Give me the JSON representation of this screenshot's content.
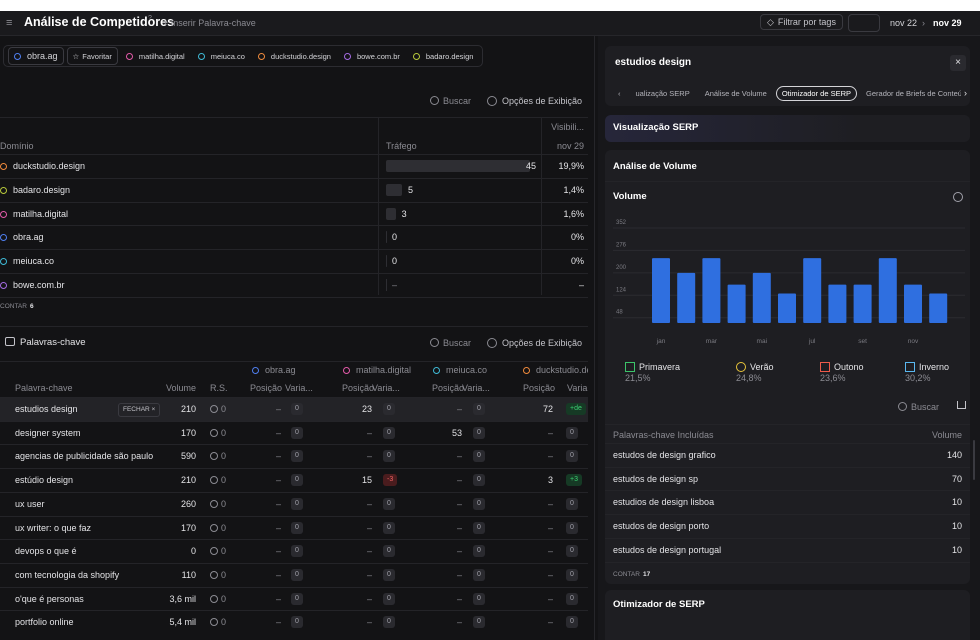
{
  "topbar": {
    "title": "Análise de Competidores",
    "title_sup": "?",
    "add_keyword": "+ Inserir Palavra-chave",
    "filter_tags": "Filtrar por tags",
    "date_start": "nov 22",
    "date_end": "nov 29"
  },
  "competitors": {
    "selected": "obra.ag",
    "selected_color": "#4f7ff0",
    "favorite": "Favoritar",
    "others": [
      {
        "name": "matilha.digital",
        "color": "#e35aa9"
      },
      {
        "name": "meiuca.co",
        "color": "#3fbad6"
      },
      {
        "name": "duckstudio.design",
        "color": "#f08a3c"
      },
      {
        "name": "bowe.com.br",
        "color": "#a46be2"
      },
      {
        "name": "badaro.design",
        "color": "#b7c93b"
      }
    ]
  },
  "domains": {
    "search": "Buscar",
    "display_options": "Opções de Exibição",
    "columns": {
      "domain": "Domínio",
      "traffic": "Tráfego",
      "visibility": "Visibili...",
      "date": "nov 29"
    },
    "rows": [
      {
        "name": "duckstudio.design",
        "color": "#f08a3c",
        "traffic": 45,
        "visibility": "19,9%"
      },
      {
        "name": "badaro.design",
        "color": "#b7c93b",
        "traffic": 5,
        "visibility": "1,4%"
      },
      {
        "name": "matilha.digital",
        "color": "#e35aa9",
        "traffic": 3,
        "visibility": "1,6%"
      },
      {
        "name": "obra.ag",
        "color": "#4f7ff0",
        "traffic": 0,
        "visibility": "0%"
      },
      {
        "name": "meiuca.co",
        "color": "#3fbad6",
        "traffic": 0,
        "visibility": "0%"
      },
      {
        "name": "bowe.com.br",
        "color": "#a46be2",
        "traffic": "–",
        "visibility": "–"
      }
    ],
    "count_label": "CONTAR",
    "count": "6"
  },
  "keywords": {
    "title": "Palavras-chave",
    "search": "Buscar",
    "display_options": "Opções de Exibição",
    "close": "FECHAR ×",
    "groups": [
      {
        "name": "obra.ag",
        "color": "#4f7ff0"
      },
      {
        "name": "matilha.digital",
        "color": "#e35aa9"
      },
      {
        "name": "meiuca.co",
        "color": "#3fbad6"
      },
      {
        "name": "duckstudio.de",
        "color": "#f08a3c"
      }
    ],
    "headers": [
      "Palavra-chave",
      "Volume",
      "R.S.",
      "Posição",
      "Varia...",
      "Posição",
      "Varia...",
      "Posição",
      "Varia...",
      "Posição",
      "Varia.."
    ],
    "rows": [
      {
        "keyword": "estudios design",
        "volume": "210",
        "rs": "0",
        "cells": [
          [
            "–",
            "0"
          ],
          [
            "23",
            "0"
          ],
          [
            "–",
            "0"
          ],
          [
            "72",
            "+de"
          ]
        ]
      },
      {
        "keyword": "designer system",
        "volume": "170",
        "rs": "0",
        "cells": [
          [
            "–",
            "0"
          ],
          [
            "–",
            "0"
          ],
          [
            "53",
            "0"
          ],
          [
            "–",
            "0"
          ]
        ]
      },
      {
        "keyword": "agencias de publicidade são paulo",
        "volume": "590",
        "rs": "0",
        "cells": [
          [
            "–",
            "0"
          ],
          [
            "–",
            "0"
          ],
          [
            "–",
            "0"
          ],
          [
            "–",
            "0"
          ]
        ]
      },
      {
        "keyword": "estúdio design",
        "volume": "210",
        "rs": "0",
        "cells": [
          [
            "–",
            "0"
          ],
          [
            "15",
            "-3"
          ],
          [
            "–",
            "0"
          ],
          [
            "3",
            "+3"
          ]
        ]
      },
      {
        "keyword": "ux user",
        "volume": "260",
        "rs": "0",
        "cells": [
          [
            "–",
            "0"
          ],
          [
            "–",
            "0"
          ],
          [
            "–",
            "0"
          ],
          [
            "–",
            "0"
          ]
        ]
      },
      {
        "keyword": "ux writer: o que faz",
        "volume": "170",
        "rs": "0",
        "cells": [
          [
            "–",
            "0"
          ],
          [
            "–",
            "0"
          ],
          [
            "–",
            "0"
          ],
          [
            "–",
            "0"
          ]
        ]
      },
      {
        "keyword": "devops o que é",
        "volume": "0",
        "rs": "0",
        "cells": [
          [
            "–",
            "0"
          ],
          [
            "–",
            "0"
          ],
          [
            "–",
            "0"
          ],
          [
            "–",
            "0"
          ]
        ]
      },
      {
        "keyword": "com tecnologia da shopify",
        "volume": "110",
        "rs": "0",
        "cells": [
          [
            "–",
            "0"
          ],
          [
            "–",
            "0"
          ],
          [
            "–",
            "0"
          ],
          [
            "–",
            "0"
          ]
        ]
      },
      {
        "keyword": "o'que é personas",
        "volume": "3,6 mil",
        "rs": "0",
        "cells": [
          [
            "–",
            "0"
          ],
          [
            "–",
            "0"
          ],
          [
            "–",
            "0"
          ],
          [
            "–",
            "0"
          ]
        ]
      },
      {
        "keyword": "portfolio online",
        "volume": "5,4 mil",
        "rs": "0",
        "cells": [
          [
            "–",
            "0"
          ],
          [
            "–",
            "0"
          ],
          [
            "–",
            "0"
          ],
          [
            "–",
            "0"
          ]
        ]
      }
    ]
  },
  "detail": {
    "keyword": "estudios design",
    "tabs": [
      "ualização SERP",
      "Análise de Volume",
      "Otimizador de SERP",
      "Gerador de Briefs de Conteúd"
    ],
    "active_tab": 2,
    "serp": "Visualização SERP",
    "volume_analysis": "Análise de Volume",
    "optimizer": "Otimizador de SERP",
    "seasons": [
      {
        "name": "Primavera",
        "share": "21,5%",
        "color": "#3cc46a"
      },
      {
        "name": "Verão",
        "share": "24,8%",
        "color": "#e8c43a"
      },
      {
        "name": "Outono",
        "share": "23,6%",
        "color": "#ef5a4a"
      },
      {
        "name": "Inverno",
        "share": "30,2%",
        "color": "#5ab8f0"
      }
    ],
    "search": "Buscar",
    "included": {
      "header": "Palavras-chave Incluídas",
      "volume_header": "Volume",
      "rows": [
        [
          "estudos de design grafico",
          "140"
        ],
        [
          "estudos de design sp",
          "70"
        ],
        [
          "estudios de design lisboa",
          "10"
        ],
        [
          "estudos de design porto",
          "10"
        ],
        [
          "estudos de design portugal",
          "10"
        ]
      ],
      "count_label": "CONTAR",
      "count": "17"
    }
  },
  "chart_data": {
    "type": "bar",
    "title": "Volume",
    "categories": [
      "jan",
      null,
      "mar",
      null,
      "mai",
      null,
      "jul",
      null,
      "set",
      null,
      "nov",
      null
    ],
    "values": [
      250,
      200,
      250,
      160,
      200,
      130,
      250,
      160,
      160,
      250,
      160,
      130
    ],
    "color": "#2f6fe0",
    "ylim": [
      30,
      352
    ],
    "yticks": [
      48,
      124,
      200,
      276,
      352
    ],
    "grid": true
  }
}
